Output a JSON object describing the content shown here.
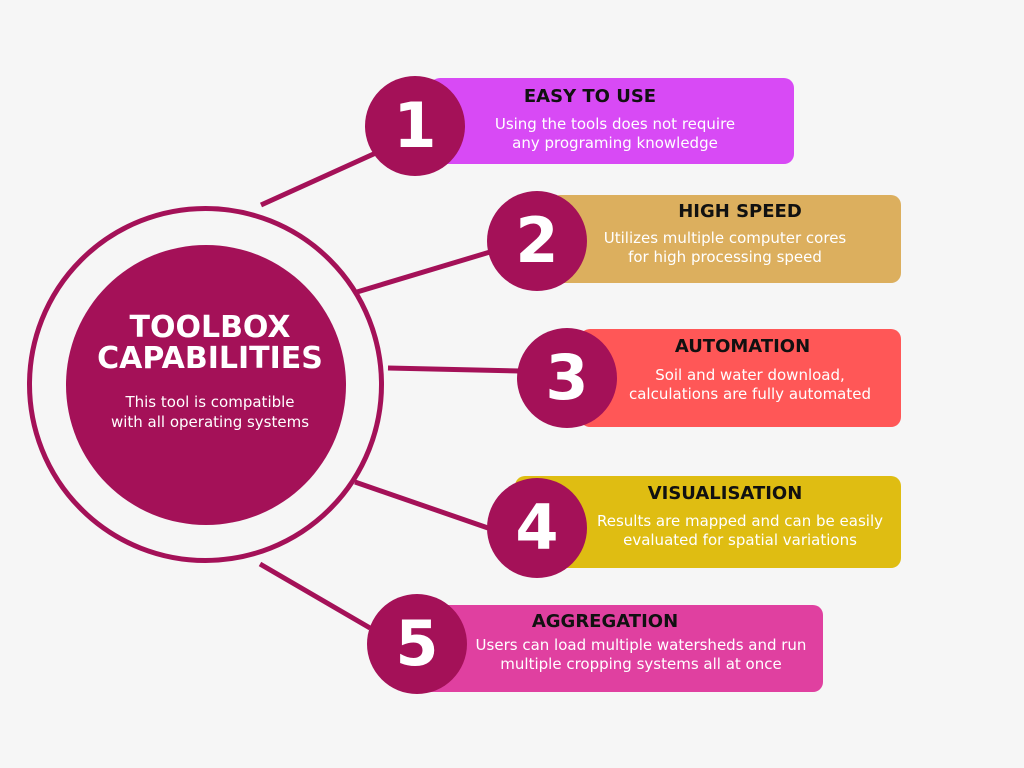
{
  "hub": {
    "title_line1": "TOOLBOX",
    "title_line2": "CAPABILITIES",
    "subtitle_line1": "This tool is compatible",
    "subtitle_line2": "with all operating systems"
  },
  "items": [
    {
      "number": "1",
      "title": "EASY TO USE",
      "desc_line1": "Using the tools does not require",
      "desc_line2": "any programing knowledge",
      "color": "#d84af5"
    },
    {
      "number": "2",
      "title": "HIGH SPEED",
      "desc_line1": "Utilizes multiple computer cores",
      "desc_line2": "for high processing speed",
      "color": "#dcaf5e"
    },
    {
      "number": "3",
      "title": "AUTOMATION",
      "desc_line1": "Soil and water download,",
      "desc_line2": "calculations are fully automated",
      "color": "#ff5757"
    },
    {
      "number": "4",
      "title": "VISUALISATION",
      "desc_line1": "Results are mapped and can be easily",
      "desc_line2": "evaluated for spatial variations",
      "color": "#dfbd12"
    },
    {
      "number": "5",
      "title": "AGGREGATION",
      "desc_line1": "Users can load multiple watersheds and run",
      "desc_line2": "multiple cropping systems all at once",
      "color": "#e040a0"
    }
  ],
  "colors": {
    "accent": "#a41158",
    "background": "#f6f6f6"
  }
}
